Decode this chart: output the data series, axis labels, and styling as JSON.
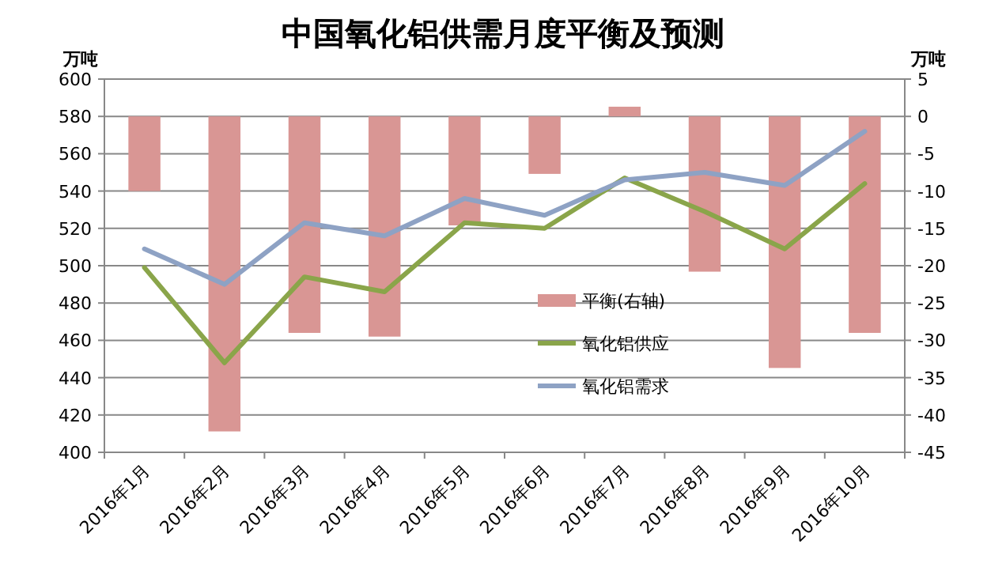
{
  "chart_data": {
    "type": "bar",
    "title": "中国氧化铝供需月度平衡及预测",
    "ylabel": "万吨",
    "y2label": "万吨",
    "categories": [
      "2016年1月",
      "2016年2月",
      "2016年3月",
      "2016年4月",
      "2016年5月",
      "2016年6月",
      "2016年7月",
      "2016年8月",
      "2016年9月",
      "2016年10月"
    ],
    "series": [
      {
        "name": "平衡(右轴)",
        "axis": "y2",
        "color": "#d99694",
        "values": [
          -10,
          -42.2,
          -29,
          -29.5,
          -14.6,
          -7.7,
          1.3,
          -20.8,
          -33.7,
          -29
        ]
      },
      {
        "name": "氧化铝供应",
        "type": "line",
        "color": "#8aa54a",
        "values": [
          499,
          448,
          494,
          486,
          523,
          520,
          547,
          529,
          509,
          544
        ]
      },
      {
        "name": "氧化铝需求",
        "type": "line",
        "color": "#8ea2c4",
        "values": [
          509,
          490,
          523,
          516,
          536,
          527,
          546,
          550,
          543,
          572
        ]
      }
    ],
    "ylim": [
      400,
      600
    ],
    "yticks": [
      400,
      420,
      440,
      460,
      480,
      500,
      520,
      540,
      560,
      580,
      600
    ],
    "y2lim": [
      -45,
      5
    ],
    "y2ticks": [
      -45,
      -40,
      -35,
      -30,
      -25,
      -20,
      -15,
      -10,
      -5,
      0,
      5
    ],
    "grid": "y",
    "legend": "right",
    "marker": "none",
    "line_style": "solid"
  }
}
